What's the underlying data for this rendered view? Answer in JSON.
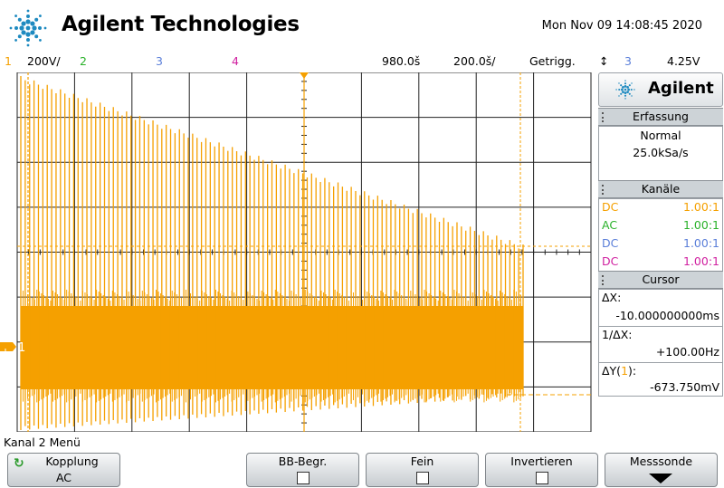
{
  "header": {
    "brand": "Agilent Technologies",
    "datetime": "Mon Nov 09 14:08:45 2020"
  },
  "status_bar": {
    "ch1_num": "1",
    "ch1_scale": "200Ⅴ/",
    "ch2_num": "2",
    "ch3_num": "3",
    "ch4_num": "4",
    "delay": "980.0š",
    "timebase": "200.0š/",
    "trigger_mode": "Getrigg.",
    "trigger_source": "3",
    "trigger_level": "4.25V"
  },
  "colors": {
    "ch1": "#f5a000",
    "ch2": "#2bb22b",
    "ch3": "#5b7fd9",
    "ch4": "#d020a0",
    "grid": "#222222"
  },
  "screen": {
    "ch1_marker": "1",
    "ground_icon": "ground-icon"
  },
  "panel": {
    "logo_text": "Agilent",
    "acquisition": {
      "title": "Erfassung",
      "mode": "Normal",
      "rate": "25.0kSa/s"
    },
    "channels": {
      "title": "Kanäle",
      "rows": [
        {
          "coupling": "DC",
          "ratio": "1.00:1",
          "color": "#f5a000"
        },
        {
          "coupling": "AC",
          "ratio": "1.00:1",
          "color": "#2bb22b"
        },
        {
          "coupling": "DC",
          "ratio": "1.00:1",
          "color": "#5b7fd9"
        },
        {
          "coupling": "DC",
          "ratio": "1.00:1",
          "color": "#d020a0"
        }
      ]
    },
    "cursor": {
      "title": "Cursor",
      "dx_label": "ΔX:",
      "dx_value": "-10.000000000ms",
      "inv_label": "1/ΔX:",
      "inv_value": "+100.00Hz",
      "dy_label": "ΔY(",
      "dy_channel": "1",
      "dy_label_end": "):",
      "dy_value": "-673.750mV"
    }
  },
  "softkeys": {
    "menu_title": "Kanal 2 Menü",
    "coupling_label": "Kopplung",
    "coupling_value": "AC",
    "bw_limit": "BB-Begr.",
    "fine": "Fein",
    "invert": "Invertieren",
    "probe": "Messsonde"
  }
}
